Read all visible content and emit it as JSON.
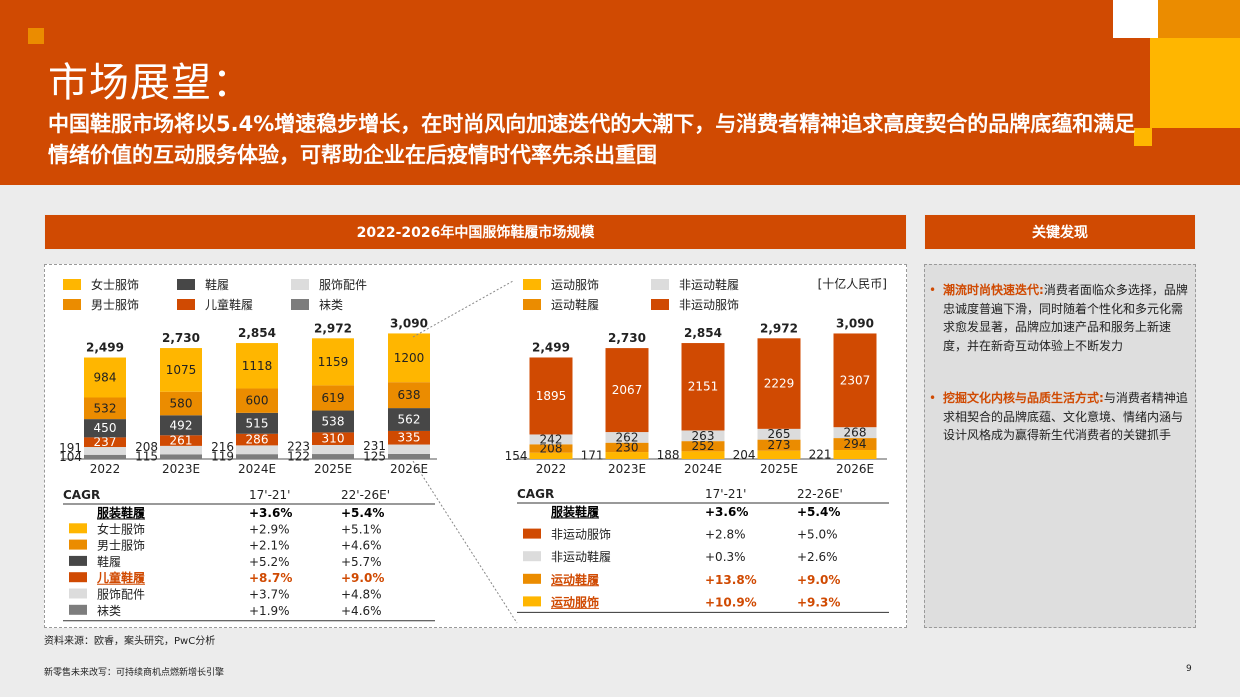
{
  "header": {
    "title": "市场展望：",
    "subtitle": "中国鞋服市场将以5.4%增速稳步增长，在时尚风向加速迭代的大潮下，与消费者精神追求高度契合的品牌底蕴和满足情绪价值的互动服务体验，可帮助企业在后疫情时代率先杀出重围"
  },
  "colors": {
    "brand": "#d04a02",
    "women": "#ffb600",
    "men": "#eb8c00",
    "shoes": "#474747",
    "kids": "#d04a02",
    "accessories": "#dcdcdc",
    "socks": "#7d7d7d"
  },
  "chart_section": {
    "title": "2022-2026年中国服饰鞋履市场规模"
  },
  "key_section": {
    "title": "关键发现"
  },
  "left_legend": [
    {
      "label": "女士服饰",
      "color": "#ffb600"
    },
    {
      "label": "鞋履",
      "color": "#474747"
    },
    {
      "label": "服饰配件",
      "color": "#dcdcdc"
    },
    {
      "label": "男士服饰",
      "color": "#eb8c00"
    },
    {
      "label": "儿童鞋履",
      "color": "#d04a02"
    },
    {
      "label": "袜类",
      "color": "#7d7d7d"
    }
  ],
  "right_legend": [
    {
      "label": "运动服饰",
      "color": "#ffb600"
    },
    {
      "label": "非运动鞋履",
      "color": "#dcdcdc"
    },
    {
      "label": "运动鞋履",
      "color": "#eb8c00"
    },
    {
      "label": "非运动服饰",
      "color": "#d04a02"
    }
  ],
  "unit": "[十亿人民币]",
  "chart_data": [
    {
      "type": "bar",
      "stacked": true,
      "categories": [
        "2022",
        "2023E",
        "2024E",
        "2025E",
        "2026E"
      ],
      "totals": [
        2499,
        2730,
        2854,
        2972,
        3090
      ],
      "series": [
        {
          "name": "袜类",
          "color": "#7d7d7d",
          "values": [
            104,
            115,
            119,
            122,
            125
          ]
        },
        {
          "name": "服饰配件",
          "color": "#dcdcdc",
          "values": [
            191,
            208,
            216,
            223,
            231
          ]
        },
        {
          "name": "儿童鞋履",
          "color": "#d04a02",
          "values": [
            237,
            261,
            286,
            310,
            335
          ]
        },
        {
          "name": "鞋履",
          "color": "#474747",
          "values": [
            450,
            492,
            515,
            538,
            562
          ]
        },
        {
          "name": "男士服饰",
          "color": "#eb8c00",
          "values": [
            532,
            580,
            600,
            619,
            638
          ]
        },
        {
          "name": "女士服饰",
          "color": "#ffb600",
          "values": [
            984,
            1075,
            1118,
            1159,
            1200
          ]
        }
      ]
    },
    {
      "type": "bar",
      "stacked": true,
      "categories": [
        "2022",
        "2023E",
        "2024E",
        "2025E",
        "2026E"
      ],
      "totals": [
        2499,
        2730,
        2854,
        2972,
        3090
      ],
      "series": [
        {
          "name": "运动服饰",
          "color": "#ffb600",
          "values": [
            154,
            171,
            188,
            204,
            221
          ]
        },
        {
          "name": "运动鞋履",
          "color": "#eb8c00",
          "values": [
            208,
            230,
            252,
            273,
            294
          ]
        },
        {
          "name": "非运动鞋履",
          "color": "#dcdcdc",
          "values": [
            242,
            262,
            263,
            265,
            268
          ]
        },
        {
          "name": "非运动服饰",
          "color": "#d04a02",
          "values": [
            1895,
            2067,
            2151,
            2229,
            2307
          ]
        }
      ]
    }
  ],
  "cagr_left": {
    "header": [
      "CAGR",
      "17'-21'",
      "22'-26E'"
    ],
    "rows": [
      {
        "label": "服装鞋履",
        "a": "+3.6%",
        "b": "+5.4%",
        "swatch": "",
        "bold": true,
        "color": "#000000"
      },
      {
        "label": "女士服饰",
        "a": "+2.9%",
        "b": "+5.1%",
        "swatch": "#ffb600",
        "bold": false,
        "color": "#222222"
      },
      {
        "label": "男士服饰",
        "a": "+2.1%",
        "b": "+4.6%",
        "swatch": "#eb8c00",
        "bold": false,
        "color": "#222222"
      },
      {
        "label": "鞋履",
        "a": "+5.2%",
        "b": "+5.7%",
        "swatch": "#474747",
        "bold": false,
        "color": "#222222"
      },
      {
        "label": "儿童鞋履",
        "a": "+8.7%",
        "b": "+9.0%",
        "swatch": "#d04a02",
        "bold": true,
        "color": "#d04a02"
      },
      {
        "label": "服饰配件",
        "a": "+3.7%",
        "b": "+4.8%",
        "swatch": "#dcdcdc",
        "bold": false,
        "color": "#222222"
      },
      {
        "label": "袜类",
        "a": "+1.9%",
        "b": "+4.6%",
        "swatch": "#7d7d7d",
        "bold": false,
        "color": "#222222"
      }
    ]
  },
  "cagr_right": {
    "header": [
      "CAGR",
      "17'-21'",
      "22-26E'"
    ],
    "rows": [
      {
        "label": "服装鞋履",
        "a": "+3.6%",
        "b": "+5.4%",
        "swatch": "",
        "bold": true,
        "color": "#000000"
      },
      {
        "label": "非运动服饰",
        "a": "+2.8%",
        "b": "+5.0%",
        "swatch": "#d04a02",
        "bold": false,
        "color": "#222222"
      },
      {
        "label": "非运动鞋履",
        "a": "+0.3%",
        "b": "+2.6%",
        "swatch": "#dcdcdc",
        "bold": false,
        "color": "#222222"
      },
      {
        "label": "运动鞋履",
        "a": "+13.8%",
        "b": "+9.0%",
        "swatch": "#eb8c00",
        "bold": true,
        "color": "#d04a02"
      },
      {
        "label": "运动服饰",
        "a": "+10.9%",
        "b": "+9.3%",
        "swatch": "#ffb600",
        "bold": true,
        "color": "#d04a02"
      }
    ]
  },
  "findings": [
    {
      "highlight": "潮流时尚快速迭代:",
      "text": "消费者面临众多选择，品牌忠诚度普遍下滑，同时随着个性化和多元化需求愈发显著，品牌应加速产品和服务上新速度，并在新奇互动体验上不断发力"
    },
    {
      "highlight": "挖掘文化内核与品质生活方式:",
      "text": "与消费者精神追求相契合的品牌底蕴、文化意境、情绪内涵与设计风格成为赢得新生代消费者的关键抓手"
    }
  ],
  "source": "资料来源：欧睿，案头研究，PwC分析",
  "footer": "新零售未来改写：可持续商机点燃新增长引擎",
  "page_number": "9"
}
